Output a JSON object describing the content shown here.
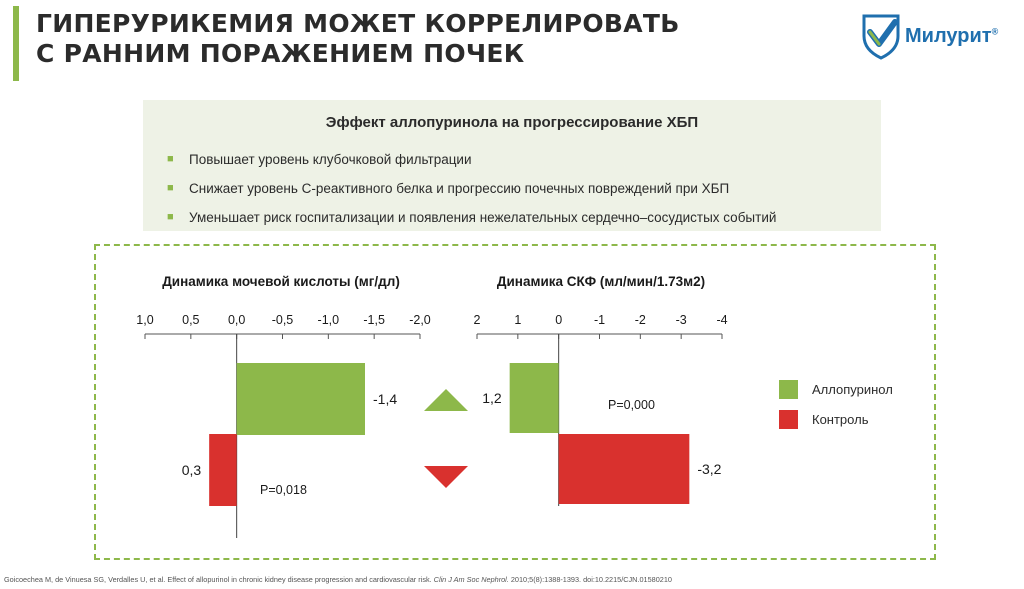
{
  "header": {
    "title_line1": "ГИПЕРУРИКЕМИЯ МОЖЕТ КОРРЕЛИРОВАТЬ",
    "title_line2": "С РАННИМ ПОРАЖЕНИЕМ ПОЧЕК",
    "logo_text": "Милурит",
    "logo_reg": "®"
  },
  "info": {
    "title": "Эффект аллопуринола на прогрессирование ХБП",
    "bullets": [
      "Повышает уровень клубочковой фильтрации",
      "Снижает уровень С-реактивного белка и прогрессию почечных повреждений при ХБП",
      "Уменьшает риск госпитализации и появления нежелательных сердечно–сосудистых событий"
    ],
    "bullet_glyph": "■"
  },
  "colors": {
    "accent": "#8db84a",
    "allopurinol": "#8db84a",
    "control": "#d9312e",
    "brand_blue": "#1f6fae"
  },
  "chart_data": [
    {
      "type": "bar",
      "title": "Динамика мочевой кислоты (мг/дл)",
      "ticks": [
        "1,0",
        "0,5",
        "0,0",
        "-0,5",
        "-1,0",
        "-1,5",
        "-2,0"
      ],
      "tick_values": [
        1.0,
        0.5,
        0.0,
        -0.5,
        -1.0,
        -1.5,
        -2.0
      ],
      "xlim": [
        1.0,
        -2.0
      ],
      "orientation": "horizontal",
      "series": [
        {
          "name": "Аллопуринол",
          "value": -1.4,
          "label": "-1,4"
        },
        {
          "name": "Контроль",
          "value": 0.3,
          "label": "0,3"
        }
      ],
      "annotation": "P=0,018"
    },
    {
      "type": "bar",
      "title": "Динамика СКФ (мл/мин/1.73м2)",
      "ticks": [
        "2",
        "1",
        "0",
        "-1",
        "-2",
        "-3",
        "-4"
      ],
      "tick_values": [
        2,
        1,
        0,
        -1,
        -2,
        -3,
        -4
      ],
      "xlim": [
        2,
        -4
      ],
      "orientation": "horizontal",
      "series": [
        {
          "name": "Аллопуринол",
          "value": 1.2,
          "label": "1,2"
        },
        {
          "name": "Контроль",
          "value": -3.2,
          "label": "-3,2"
        }
      ],
      "annotation": "P=0,000"
    }
  ],
  "legend": {
    "items": [
      {
        "label": "Аллопуринол"
      },
      {
        "label": "Контроль"
      }
    ]
  },
  "footnote": {
    "text": "Goicoechea M, de Vinuesa SG, Verdalles U, et al. Effect of allopurinol in chronic kidney disease progression and cardiovascular risk.",
    "journal": "Clin J Am Soc Nephrol.",
    "details": "2010;5(8):1388-1393. doi:10.2215/CJN.01580210"
  }
}
